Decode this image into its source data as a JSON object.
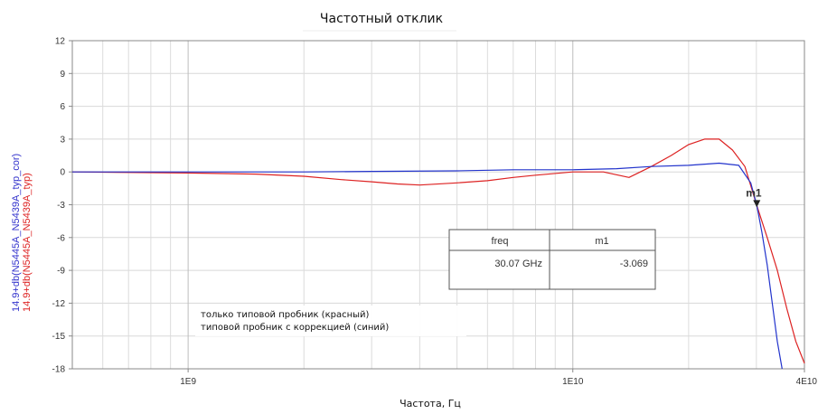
{
  "chart_data": {
    "type": "line",
    "title": "Частотный отклик",
    "xlabel": "Частота, Гц",
    "ylabels": [
      {
        "text": "14.9+db(N5445A_N5439A_typ_cor)",
        "color": "#3333cc"
      },
      {
        "text": "14.9+db(N5445A_N5439A_typ)",
        "color": "#dd2222"
      }
    ],
    "xscale": "log",
    "xlim": [
      500000000,
      40000000000
    ],
    "ylim": [
      -18,
      12
    ],
    "grid": true,
    "x_ticks": [
      {
        "value": 1000000000,
        "label": "1E9"
      },
      {
        "value": 10000000000,
        "label": "1E10"
      },
      {
        "value": 40000000000,
        "label": "4E10"
      }
    ],
    "y_ticks": [
      12,
      9,
      6,
      3,
      0,
      -3,
      -6,
      -9,
      -12,
      -15,
      -18
    ],
    "series": [
      {
        "color": "#dd2222",
        "points": [
          [
            500000000,
            0
          ],
          [
            700000000,
            -0.05
          ],
          [
            1000000000,
            -0.1
          ],
          [
            1500000000,
            -0.2
          ],
          [
            2000000000,
            -0.4
          ],
          [
            2500000000,
            -0.7
          ],
          [
            3000000000,
            -0.9
          ],
          [
            3500000000,
            -1.1
          ],
          [
            4000000000,
            -1.2
          ],
          [
            5000000000,
            -1.0
          ],
          [
            6000000000,
            -0.8
          ],
          [
            7000000000,
            -0.5
          ],
          [
            8000000000,
            -0.3
          ],
          [
            10000000000,
            0
          ],
          [
            12000000000,
            0
          ],
          [
            14000000000,
            -0.5
          ],
          [
            16000000000,
            0.5
          ],
          [
            18000000000,
            1.5
          ],
          [
            20000000000,
            2.5
          ],
          [
            22000000000,
            3.0
          ],
          [
            24000000000,
            3.0
          ],
          [
            26000000000,
            2.0
          ],
          [
            28000000000,
            0.5
          ],
          [
            30070000000,
            -3.069
          ],
          [
            32000000000,
            -6.0
          ],
          [
            34000000000,
            -9.0
          ],
          [
            36000000000,
            -12.5
          ],
          [
            38000000000,
            -15.5
          ],
          [
            40000000000,
            -17.5
          ]
        ]
      },
      {
        "color": "#2233cc",
        "points": [
          [
            500000000,
            0
          ],
          [
            1000000000,
            0
          ],
          [
            2000000000,
            0
          ],
          [
            3000000000,
            0.05
          ],
          [
            5000000000,
            0.1
          ],
          [
            7000000000,
            0.2
          ],
          [
            10000000000,
            0.2
          ],
          [
            13000000000,
            0.3
          ],
          [
            16000000000,
            0.5
          ],
          [
            20000000000,
            0.6
          ],
          [
            24000000000,
            0.8
          ],
          [
            27000000000,
            0.6
          ],
          [
            29000000000,
            -1.0
          ],
          [
            30070000000,
            -3.069
          ],
          [
            31000000000,
            -5.5
          ],
          [
            32000000000,
            -8.5
          ],
          [
            33000000000,
            -12.0
          ],
          [
            34000000000,
            -15.5
          ],
          [
            35000000000,
            -18.0
          ]
        ]
      }
    ],
    "marker": {
      "label": "m1",
      "x": 30070000000,
      "y": -3.069
    },
    "marker_table": {
      "headers": [
        "freq",
        "m1"
      ],
      "values": [
        "30.07 GHz",
        "-3.069"
      ]
    },
    "annotations": [
      "только типовой пробник (красный)",
      "типовой пробник с коррекцией (синий)"
    ]
  }
}
